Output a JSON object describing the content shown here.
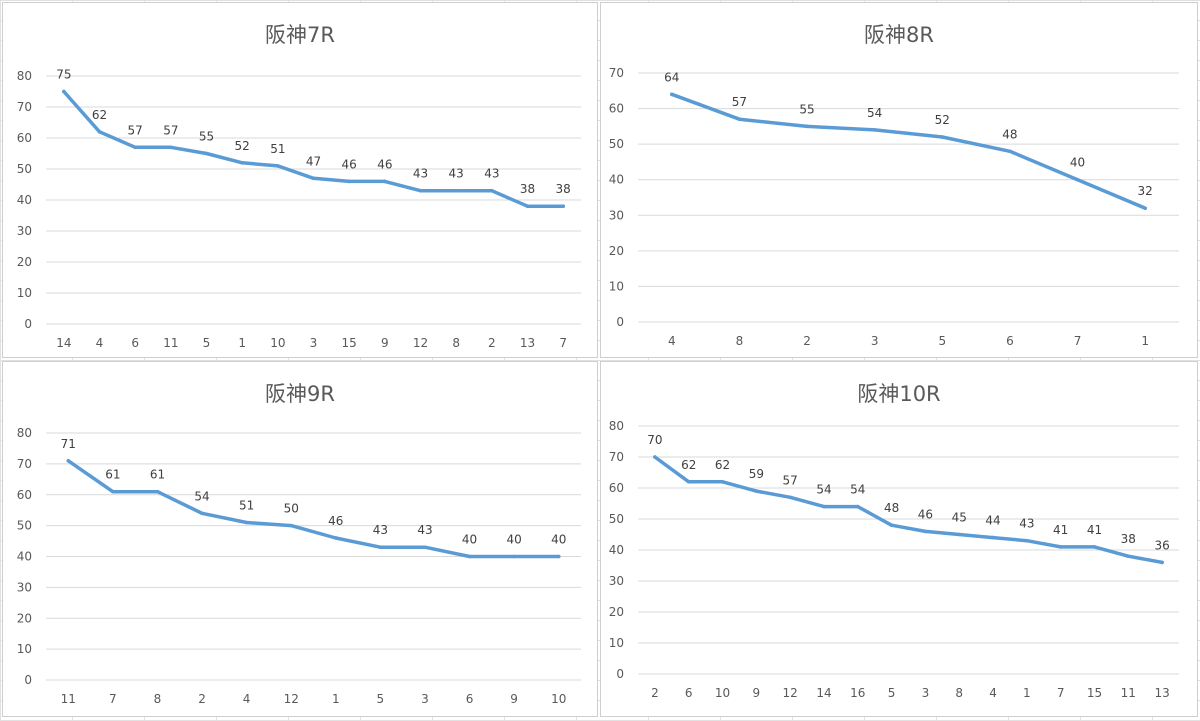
{
  "chart_data": [
    {
      "type": "line",
      "title": "阪神7R",
      "categories": [
        "14",
        "4",
        "6",
        "11",
        "5",
        "1",
        "10",
        "3",
        "15",
        "9",
        "12",
        "8",
        "2",
        "13",
        "7"
      ],
      "series": [
        {
          "values": [
            75,
            62,
            57,
            57,
            55,
            52,
            51,
            47,
            46,
            46,
            43,
            43,
            43,
            38,
            38
          ]
        }
      ],
      "ylim": [
        0,
        80
      ],
      "yticks": [
        0,
        10,
        20,
        30,
        40,
        50,
        60,
        70,
        80
      ],
      "data_labels": true,
      "grid": true,
      "legend": "none"
    },
    {
      "type": "line",
      "title": "阪神8R",
      "categories": [
        "4",
        "8",
        "2",
        "3",
        "5",
        "6",
        "7",
        "1"
      ],
      "series": [
        {
          "values": [
            64,
            57,
            55,
            54,
            52,
            48,
            40,
            32
          ]
        }
      ],
      "ylim": [
        0,
        70
      ],
      "yticks": [
        0,
        10,
        20,
        30,
        40,
        50,
        60,
        70
      ],
      "data_labels": true,
      "grid": true,
      "legend": "none"
    },
    {
      "type": "line",
      "title": "阪神9R",
      "categories": [
        "11",
        "7",
        "8",
        "2",
        "4",
        "12",
        "1",
        "5",
        "3",
        "6",
        "9",
        "10"
      ],
      "series": [
        {
          "values": [
            71,
            61,
            61,
            54,
            51,
            50,
            46,
            43,
            43,
            40,
            40,
            40
          ]
        }
      ],
      "ylim": [
        0,
        80
      ],
      "yticks": [
        0,
        10,
        20,
        30,
        40,
        50,
        60,
        70,
        80
      ],
      "data_labels": true,
      "grid": true,
      "legend": "none"
    },
    {
      "type": "line",
      "title": "阪神10R",
      "categories": [
        "2",
        "6",
        "10",
        "9",
        "12",
        "14",
        "16",
        "5",
        "3",
        "8",
        "4",
        "1",
        "7",
        "15",
        "11",
        "13"
      ],
      "series": [
        {
          "values": [
            70,
            62,
            62,
            59,
            57,
            54,
            54,
            48,
            46,
            45,
            44,
            43,
            41,
            41,
            38,
            36
          ]
        }
      ],
      "ylim": [
        0,
        80
      ],
      "yticks": [
        0,
        10,
        20,
        30,
        40,
        50,
        60,
        70,
        80
      ],
      "data_labels": true,
      "grid": true,
      "legend": "none"
    }
  ],
  "colors": {
    "line": "#5b9bd5",
    "gridline": "#d9d9d9",
    "tick_text": "#595959",
    "title_text": "#595959",
    "data_label_text": "#404040"
  }
}
